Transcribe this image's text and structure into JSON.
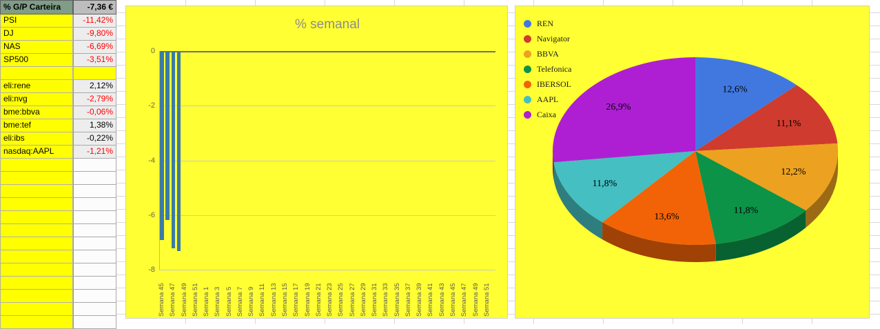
{
  "table": {
    "header": {
      "label": "% G/P Carteira",
      "value": "-7,36 €"
    },
    "rows": [
      {
        "label": "PSI",
        "value": "-11,42%",
        "negative": true,
        "blank": false
      },
      {
        "label": "DJ",
        "value": "-9,80%",
        "negative": true,
        "blank": false
      },
      {
        "label": "NAS",
        "value": "-6,69%",
        "negative": true,
        "blank": false
      },
      {
        "label": "SP500",
        "value": "-3,51%",
        "negative": true,
        "blank": false
      },
      {
        "label": "",
        "value": "",
        "negative": false,
        "blank": true
      },
      {
        "label": "eli:rene",
        "value": "2,12%",
        "negative": false,
        "blank": false
      },
      {
        "label": "eli:nvg",
        "value": "-2,79%",
        "negative": true,
        "blank": false
      },
      {
        "label": "bme:bbva",
        "value": "-0,06%",
        "negative": true,
        "blank": false
      },
      {
        "label": "bme:tef",
        "value": "1,38%",
        "negative": false,
        "blank": false
      },
      {
        "label": "eli:ibs",
        "value": "-0,22%",
        "negative": false,
        "blank": false
      },
      {
        "label": "nasdaq:AAPL",
        "value": "-1,21%",
        "negative": true,
        "blank": false
      }
    ],
    "filler_row_count": 13
  },
  "chart_data": [
    {
      "type": "bar",
      "title": "% semanal",
      "title_color": "#8c8c8c",
      "bar_color": "#3a7ca5",
      "background": "#ffff33",
      "ylim": [
        -8,
        0
      ],
      "yticks": [
        0,
        -2,
        -4,
        -6,
        -8
      ],
      "num_categories": 60,
      "x_tick_every": 2,
      "x_tick_labels": [
        "Semana 45",
        "Semana 47",
        "Semana 49",
        "Semana 51",
        "Semana 1",
        "Semana 3",
        "Semana 5",
        "Semana 7",
        "Semana 9",
        "Semana 11",
        "Semana 13",
        "Semana 15",
        "Semana 17",
        "Semana 19",
        "Semana 21",
        "Semana 23",
        "Semana 25",
        "Semana 27",
        "Semana 29",
        "Semana 31",
        "Semana 33",
        "Semana 35",
        "Semana 37",
        "Semana 39",
        "Semana 41",
        "Semana 43",
        "Semana 45",
        "Semana 47",
        "Semana 49",
        "Semana 51"
      ],
      "series": [
        {
          "name": "% semanal",
          "points": [
            {
              "week": "Semana 45",
              "index": 0,
              "value": -6.9
            },
            {
              "week": "Semana 46",
              "index": 1,
              "value": -6.15
            },
            {
              "week": "Semana 47",
              "index": 2,
              "value": -7.2
            },
            {
              "week": "Semana 48",
              "index": 3,
              "value": -7.3
            }
          ]
        }
      ]
    },
    {
      "type": "pie",
      "is3d": true,
      "background": "#ffff33",
      "legend_position": "top-left",
      "slices": [
        {
          "name": "REN",
          "pct": 12.6,
          "label": "12,6%",
          "color": "#4178e0"
        },
        {
          "name": "Navigator",
          "pct": 11.1,
          "label": "11,1%",
          "color": "#cf3b2e"
        },
        {
          "name": "BBVA",
          "pct": 12.2,
          "label": "12,2%",
          "color": "#eda120"
        },
        {
          "name": "Telefonica",
          "pct": 11.8,
          "label": "11,8%",
          "color": "#0c9348"
        },
        {
          "name": "IBERSOL",
          "pct": 13.6,
          "label": "13,6%",
          "color": "#f26307"
        },
        {
          "name": "AAPL",
          "pct": 11.8,
          "label": "11,8%",
          "color": "#45bfc2"
        },
        {
          "name": "Caixa",
          "pct": 26.9,
          "label": "26,9%",
          "color": "#ae1fd4"
        }
      ]
    }
  ]
}
